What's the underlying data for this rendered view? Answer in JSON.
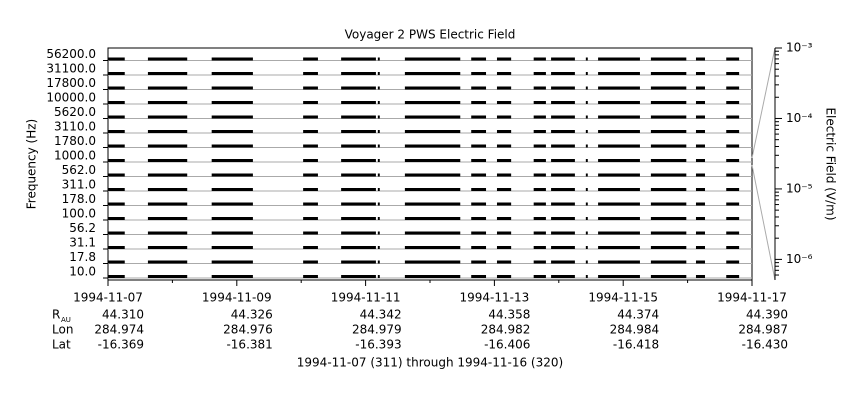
{
  "chart_data": {
    "type": "spectrogram-strips",
    "title": "Voyager 2 PWS Electric Field",
    "ylabel": "Frequency (Hz)",
    "y2label": "Electric Field (V/m)",
    "channels": [
      "56200.0",
      "31100.0",
      "17800.0",
      "10000.0",
      "5620.0",
      "3110.0",
      "1780.0",
      "1000.0",
      "562.0",
      "311.0",
      "178.0",
      "100.0",
      "56.2",
      "31.1",
      "17.8",
      "10.0"
    ],
    "xlim": [
      0,
      10
    ],
    "xticks": [
      {
        "value": 0,
        "label": "1994-11-07"
      },
      {
        "value": 2,
        "label": "1994-11-09"
      },
      {
        "value": 4,
        "label": "1994-11-11"
      },
      {
        "value": 6,
        "label": "1994-11-13"
      },
      {
        "value": 8,
        "label": "1994-11-15"
      },
      {
        "value": 10,
        "label": "1994-11-17"
      }
    ],
    "minor_xticks": [
      1,
      3,
      5,
      7,
      9
    ],
    "coverage": [
      [
        0,
        0.26
      ],
      [
        0.62,
        1.23
      ],
      [
        1.61,
        2.25
      ],
      [
        3.03,
        3.26
      ],
      [
        3.62,
        4.16
      ],
      [
        4.19,
        4.22
      ],
      [
        4.61,
        5.47
      ],
      [
        5.64,
        5.87
      ],
      [
        6.04,
        6.26
      ],
      [
        6.61,
        6.8
      ],
      [
        6.88,
        7.25
      ],
      [
        7.42,
        7.45
      ],
      [
        7.61,
        8.26
      ],
      [
        8.43,
        8.98
      ],
      [
        9.13,
        9.27
      ],
      [
        9.6,
        9.8
      ]
    ],
    "color": "#000000",
    "y2scale": "log",
    "y2lim": [
      5.1e-07,
      0.001
    ],
    "y2ticks": [
      {
        "value": 0.001,
        "label": "10⁻³"
      },
      {
        "value": 0.0001,
        "label": "10⁻⁴"
      },
      {
        "value": 1e-05,
        "label": "10⁻⁵"
      },
      {
        "value": 1e-06,
        "label": "10⁻⁶"
      }
    ],
    "ephemeris": [
      {
        "label": "R",
        "sub": "AU",
        "values": [
          "44.310",
          "44.326",
          "44.342",
          "44.358",
          "44.374",
          "44.390"
        ]
      },
      {
        "label": "Lon",
        "values": [
          "284.974",
          "284.976",
          "284.979",
          "284.982",
          "284.984",
          "284.987"
        ]
      },
      {
        "label": "Lat",
        "values": [
          "-16.369",
          "-16.381",
          "-16.393",
          "-16.406",
          "-16.418",
          "-16.430"
        ]
      }
    ],
    "footer": "1994-11-07 (311) through 1994-11-16 (320)"
  }
}
